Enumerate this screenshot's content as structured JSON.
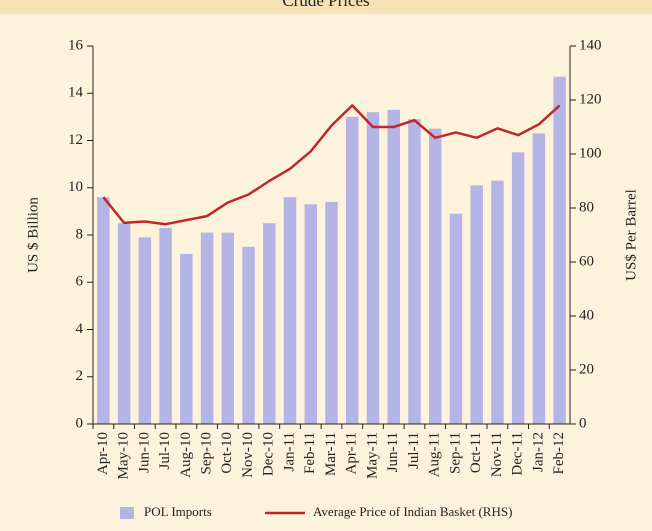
{
  "chart_data": {
    "type": "bar",
    "title": "Crude Prices",
    "categories": [
      "Apr-10",
      "May-10",
      "Jun-10",
      "Jul-10",
      "Aug-10",
      "Sep-10",
      "Oct-10",
      "Nov-10",
      "Dec-10",
      "Jan-11",
      "Feb-11",
      "Mar-11",
      "Apr-11",
      "May-11",
      "Jun-11",
      "Jul-11",
      "Aug-11",
      "Sep-11",
      "Oct-11",
      "Nov-11",
      "Dec-11",
      "Jan-12",
      "Feb-12"
    ],
    "series": [
      {
        "name": "POL Imports",
        "type": "bar",
        "color": "#b4b4e6",
        "values": [
          9.6,
          8.5,
          7.9,
          8.3,
          7.2,
          8.1,
          8.1,
          7.5,
          8.5,
          9.6,
          9.3,
          9.4,
          13.0,
          13.2,
          13.3,
          12.9,
          12.5,
          8.9,
          10.1,
          10.3,
          11.5,
          12.3,
          14.7
        ]
      },
      {
        "name": "Average Price of Indian Basket (RHS)",
        "type": "line",
        "axis": "y2",
        "color": "#c0272d",
        "values": [
          84,
          74.5,
          75,
          74,
          75.5,
          77,
          82,
          85,
          90,
          94.5,
          101,
          110.5,
          118,
          110,
          110,
          112.5,
          106,
          108,
          106,
          109.5,
          107,
          111,
          118
        ]
      }
    ],
    "ylabel": "US $ Billion",
    "y2label": "US$ Per Barrel",
    "ylim": [
      0,
      16
    ],
    "yticks": [
      0,
      2,
      4,
      6,
      8,
      10,
      12,
      14,
      16
    ],
    "y2lim": [
      0,
      140
    ],
    "y2ticks": [
      0,
      20,
      40,
      60,
      80,
      100,
      120,
      140
    ],
    "legend": "bottom"
  }
}
